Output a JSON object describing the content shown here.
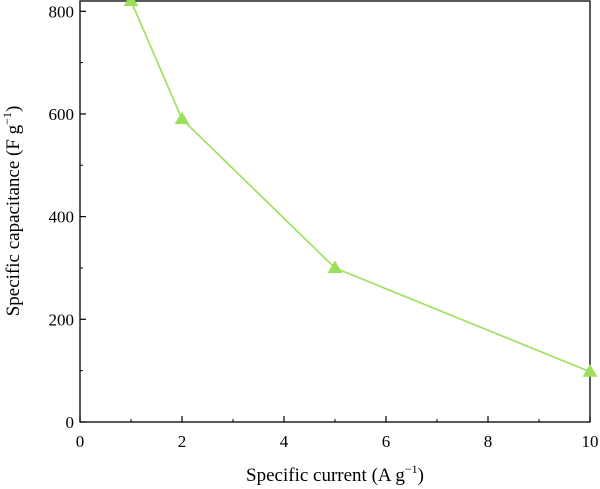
{
  "chart_data": {
    "type": "line",
    "xlabel": {
      "text": "Specific current (A g",
      "sup": "−1",
      "close": ")"
    },
    "ylabel": {
      "text": "Specific capacitance (F g",
      "sup": "−1",
      "close": ")"
    },
    "xlim": [
      0,
      10
    ],
    "ylim": [
      0,
      820
    ],
    "xticks": [
      0,
      2,
      4,
      6,
      8,
      10
    ],
    "yticks": [
      0,
      200,
      400,
      600,
      800
    ],
    "xticks_minor": [
      1,
      3,
      5,
      7,
      9
    ],
    "yticks_minor": [
      100,
      300,
      500,
      700
    ],
    "grid": false,
    "series": [
      {
        "x": [
          1,
          2,
          5,
          10
        ],
        "y": [
          820,
          590,
          300,
          98
        ],
        "color": "#9be05a",
        "marker": "triangle"
      }
    ]
  }
}
